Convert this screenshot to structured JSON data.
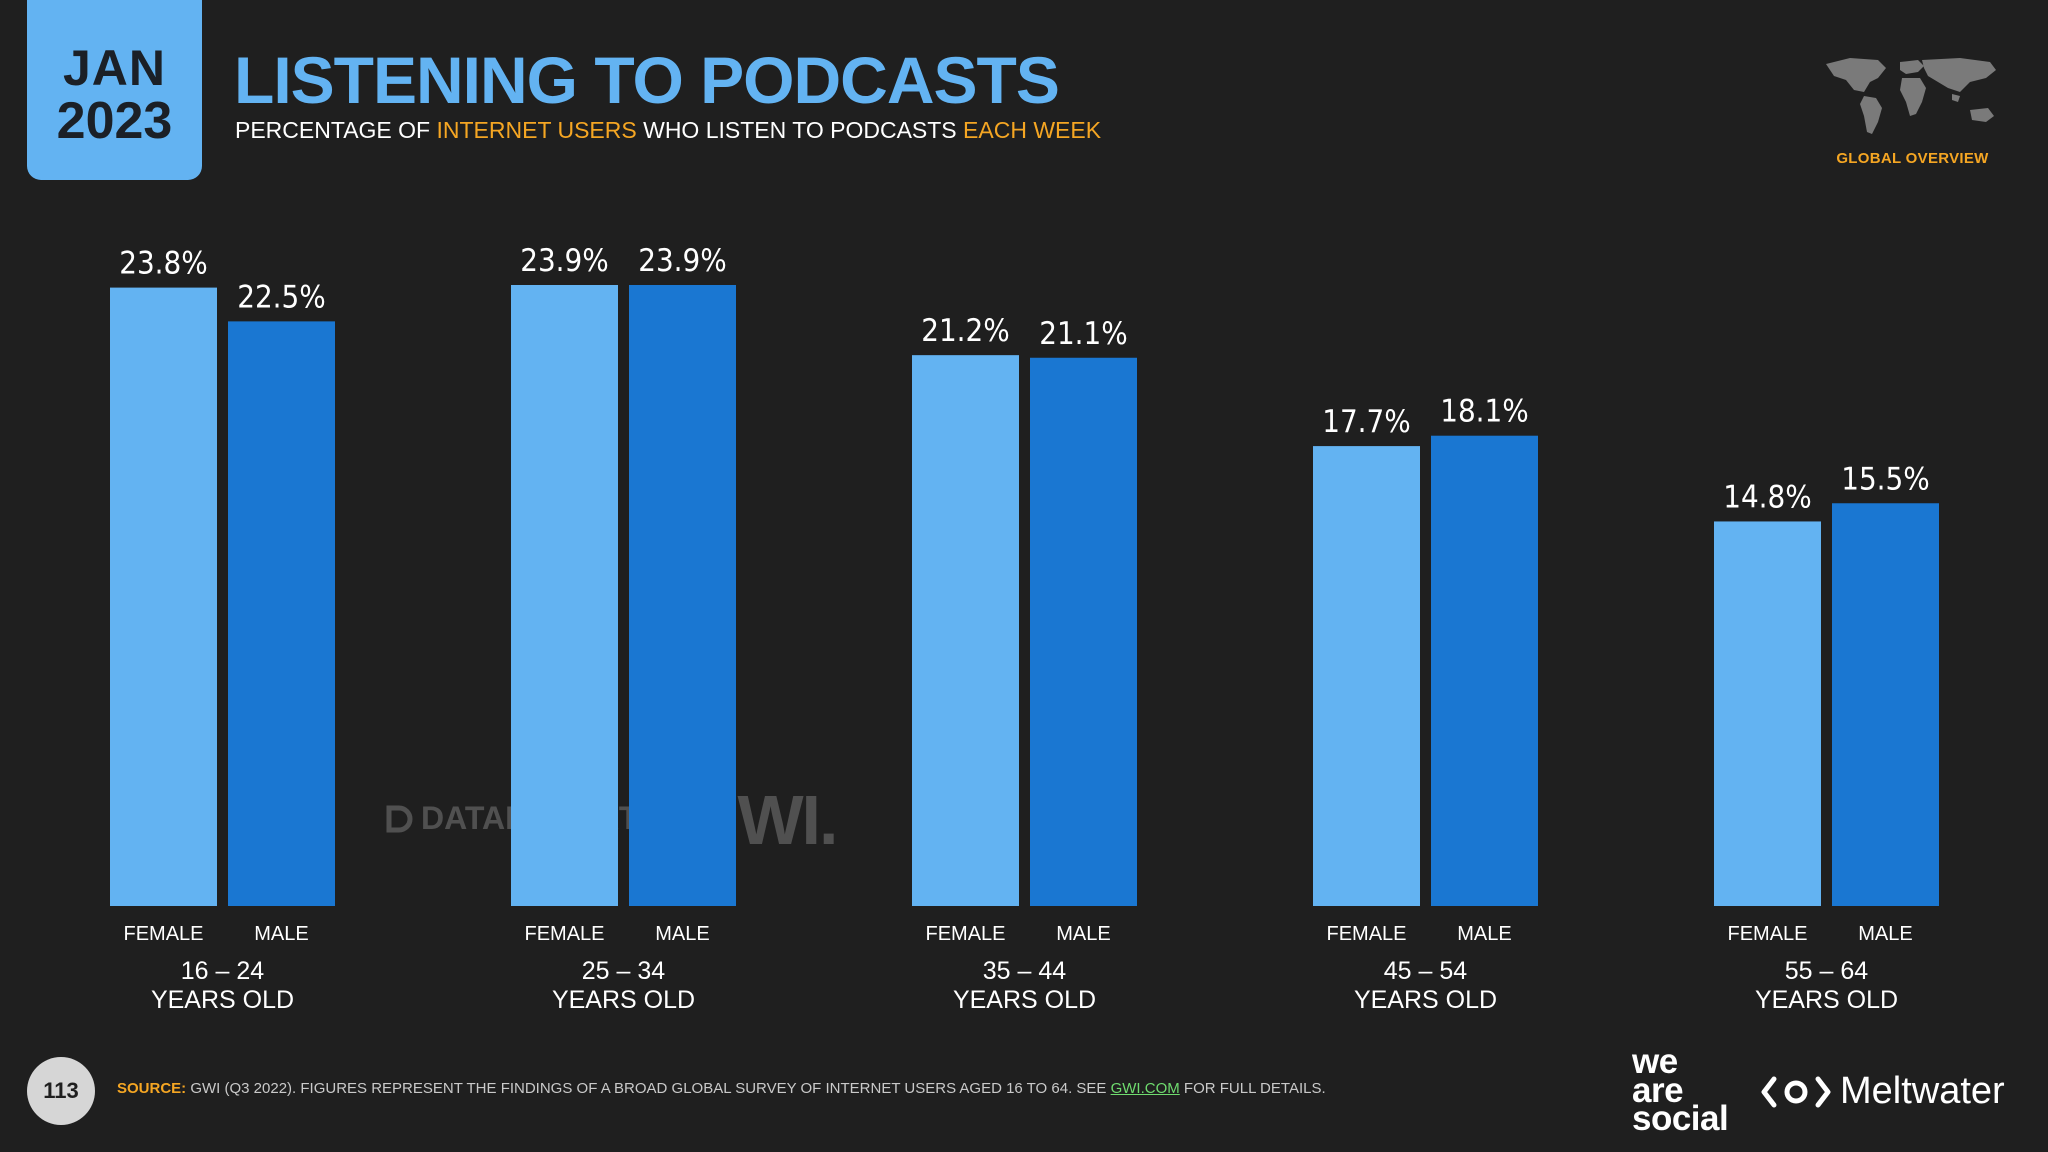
{
  "header": {
    "month": "JAN",
    "year": "2023",
    "title": "LISTENING TO PODCASTS",
    "subtitle": {
      "p1": "PERCENTAGE OF ",
      "h1": "INTERNET USERS",
      "p2": " WHO LISTEN TO PODCASTS ",
      "h2": "EACH WEEK"
    },
    "map_label": "GLOBAL OVERVIEW"
  },
  "chart_data": {
    "type": "bar",
    "title": "LISTENING TO PODCASTS",
    "categories": [
      "16 – 24",
      "25 – 34",
      "35 – 44",
      "45 – 54",
      "55 – 64"
    ],
    "category_suffix": "YEARS OLD",
    "series": [
      {
        "name": "FEMALE",
        "color": "#63b3f2",
        "values": [
          23.8,
          23.9,
          21.2,
          17.7,
          14.8
        ]
      },
      {
        "name": "MALE",
        "color": "#1a77d2",
        "values": [
          22.5,
          23.9,
          21.1,
          18.1,
          15.5
        ]
      }
    ],
    "value_suffix": "%",
    "ylim": [
      0,
      23.9
    ]
  },
  "watermarks": {
    "datareportal": "DATAREPORTAL",
    "gwi": "GWI."
  },
  "footer": {
    "page_number": "113",
    "source_label": "SOURCE:",
    "source_text": " GWI (Q3 2022). FIGURES REPRESENT THE FINDINGS OF A BROAD GLOBAL SURVEY OF INTERNET USERS AGED 16 TO 64. SEE ",
    "source_link": "GWI.COM",
    "source_end": " FOR FULL DETAILS.",
    "brand1_line1": "we",
    "brand1_line2": "are",
    "brand1_line3": "social",
    "brand2": "Meltwater"
  },
  "colors": {
    "background": "#1f1f1f",
    "accent_blue": "#63b3f2",
    "dark_blue": "#1a77d2",
    "highlight_orange": "#f5a623"
  }
}
